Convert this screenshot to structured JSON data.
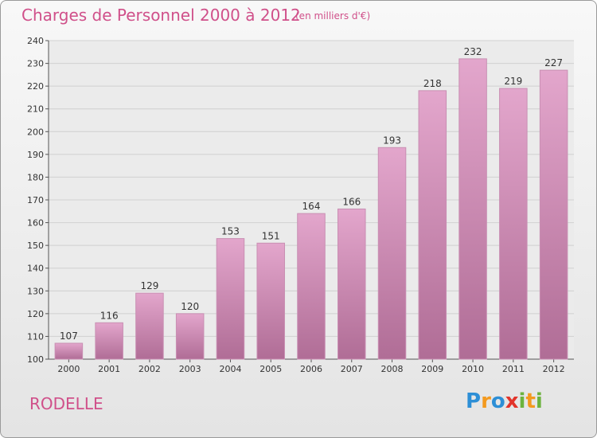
{
  "header": {
    "title": "Charges de Personnel 2000 à 2012",
    "subtitle": "(en milliers d'€)"
  },
  "footer": {
    "commune": "RODELLE",
    "logo_text": "Proxiti"
  },
  "colors": {
    "title": "#d0508a",
    "bar_top": "#e3a6cc",
    "bar_bottom": "#b06d96",
    "grid": "#d0d0d0"
  },
  "chart_data": {
    "type": "bar",
    "title": "Charges de Personnel 2000 à 2012",
    "subtitle": "(en milliers d'€)",
    "xlabel": "",
    "ylabel": "",
    "categories": [
      "2000",
      "2001",
      "2002",
      "2003",
      "2004",
      "2005",
      "2006",
      "2007",
      "2008",
      "2009",
      "2010",
      "2011",
      "2012"
    ],
    "values": [
      107,
      116,
      129,
      120,
      153,
      151,
      164,
      166,
      193,
      218,
      232,
      219,
      227
    ],
    "ylim": [
      100,
      240
    ],
    "yticks": [
      100,
      110,
      120,
      130,
      140,
      150,
      160,
      170,
      180,
      190,
      200,
      210,
      220,
      230,
      240
    ],
    "grid": true,
    "data_labels": true
  }
}
